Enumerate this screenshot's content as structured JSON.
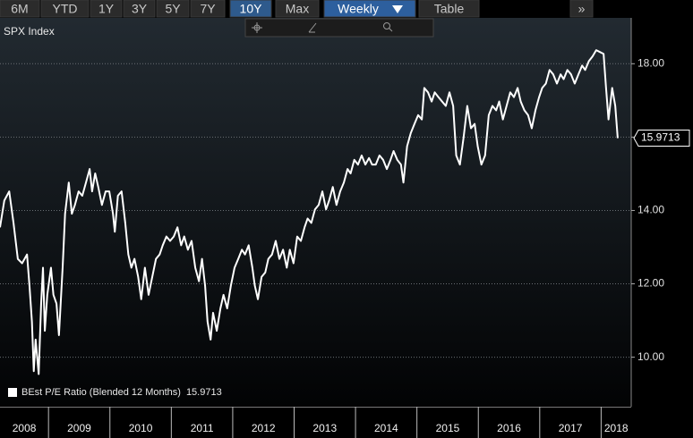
{
  "toolbar": {
    "buttons": [
      "6M",
      "YTD",
      "1Y",
      "3Y",
      "5Y",
      "7Y",
      "10Y",
      "Max",
      "Weekly",
      "Table",
      "»"
    ],
    "tools": [
      "Track",
      "Annotate",
      "Zoom"
    ]
  },
  "chart_data": {
    "type": "line",
    "title": "SPX Index",
    "x": [
      2008.21,
      2008.28,
      2008.36,
      2008.43,
      2008.5,
      2008.57,
      2008.65,
      2008.69,
      2008.73,
      2008.76,
      2008.79,
      2008.84,
      2008.88,
      2008.91,
      2008.94,
      2008.98,
      2009.04,
      2009.08,
      2009.13,
      2009.17,
      2009.23,
      2009.27,
      2009.33,
      2009.38,
      2009.43,
      2009.49,
      2009.55,
      2009.61,
      2009.67,
      2009.71,
      2009.76,
      2009.81,
      2009.87,
      2009.93,
      2009.99,
      2010.05,
      2010.08,
      2010.13,
      2010.19,
      2010.25,
      2010.3,
      2010.35,
      2010.4,
      2010.46,
      2010.51,
      2010.57,
      2010.63,
      2010.69,
      2010.75,
      2010.81,
      2010.86,
      2010.92,
      2010.98,
      2011.04,
      2011.1,
      2011.16,
      2011.21,
      2011.27,
      2011.33,
      2011.39,
      2011.45,
      2011.5,
      2011.55,
      2011.59,
      2011.64,
      2011.68,
      2011.74,
      2011.8,
      2011.85,
      2011.91,
      2011.97,
      2012.03,
      2012.09,
      2012.15,
      2012.2,
      2012.26,
      2012.32,
      2012.36,
      2012.41,
      2012.47,
      2012.53,
      2012.58,
      2012.64,
      2012.7,
      2012.76,
      2012.82,
      2012.88,
      2012.93,
      2012.99,
      2013.05,
      2013.11,
      2013.17,
      2013.22,
      2013.28,
      2013.34,
      2013.4,
      2013.46,
      2013.52,
      2013.57,
      2013.63,
      2013.69,
      2013.75,
      2013.81,
      2013.87,
      2013.92,
      2013.98,
      2014.04,
      2014.1,
      2014.16,
      2014.22,
      2014.27,
      2014.33,
      2014.39,
      2014.45,
      2014.51,
      2014.57,
      2014.62,
      2014.68,
      2014.74,
      2014.78,
      2014.84,
      2014.9,
      2014.96,
      2015.02,
      2015.08,
      2015.12,
      2015.18,
      2015.24,
      2015.29,
      2015.35,
      2015.41,
      2015.47,
      2015.53,
      2015.59,
      2015.64,
      2015.7,
      2015.76,
      2015.82,
      2015.88,
      2015.94,
      2015.99,
      2016.05,
      2016.11,
      2016.17,
      2016.23,
      2016.29,
      2016.34,
      2016.4,
      2016.46,
      2016.52,
      2016.58,
      2016.64,
      2016.69,
      2016.75,
      2016.81,
      2016.87,
      2016.93,
      2016.99,
      2017.04,
      2017.1,
      2017.16,
      2017.22,
      2017.28,
      2017.34,
      2017.39,
      2017.45,
      2017.51,
      2017.57,
      2017.63,
      2017.69,
      2017.74,
      2017.8,
      2017.86,
      2017.92,
      2017.98,
      2018.04,
      2018.08,
      2018.12,
      2018.18,
      2018.23,
      2018.27
    ],
    "series": [
      {
        "name": "BEst P/E Ratio (Blended 12 Months)",
        "color": "#ffffff",
        "values": [
          13.54,
          14.27,
          14.52,
          13.66,
          12.68,
          12.56,
          12.8,
          11.95,
          10.97,
          9.62,
          10.48,
          9.54,
          11.46,
          12.44,
          10.72,
          11.7,
          12.44,
          11.7,
          11.46,
          10.6,
          12.44,
          13.91,
          14.76,
          13.91,
          14.15,
          14.52,
          14.4,
          14.76,
          15.13,
          14.52,
          15.01,
          14.64,
          14.15,
          14.52,
          14.52,
          13.91,
          13.42,
          14.4,
          14.52,
          13.66,
          12.8,
          12.44,
          12.68,
          12.19,
          11.58,
          12.44,
          11.7,
          12.19,
          12.68,
          12.8,
          13.05,
          13.29,
          13.17,
          13.29,
          13.54,
          13.05,
          13.29,
          12.93,
          13.17,
          12.44,
          12.07,
          12.68,
          11.95,
          10.97,
          10.48,
          11.21,
          10.72,
          11.33,
          11.7,
          11.33,
          11.95,
          12.44,
          12.68,
          12.93,
          12.8,
          13.05,
          12.44,
          11.95,
          11.58,
          12.19,
          12.31,
          12.68,
          12.8,
          13.17,
          12.68,
          12.93,
          12.44,
          12.93,
          12.56,
          13.29,
          13.17,
          13.54,
          13.78,
          13.66,
          14.03,
          14.15,
          14.52,
          14.03,
          14.27,
          14.64,
          14.15,
          14.52,
          14.76,
          15.13,
          15.01,
          15.38,
          15.25,
          15.5,
          15.25,
          15.43,
          15.25,
          15.25,
          15.5,
          15.38,
          15.13,
          15.38,
          15.62,
          15.38,
          15.25,
          14.76,
          15.75,
          16.11,
          16.36,
          16.6,
          16.48,
          17.34,
          17.22,
          16.97,
          17.22,
          17.09,
          16.97,
          16.85,
          17.22,
          16.85,
          15.5,
          15.25,
          15.99,
          16.85,
          16.24,
          16.36,
          15.75,
          15.25,
          15.5,
          16.6,
          16.85,
          16.73,
          16.97,
          16.48,
          16.85,
          17.22,
          17.09,
          17.34,
          16.97,
          16.73,
          16.6,
          16.24,
          16.73,
          17.09,
          17.34,
          17.46,
          17.83,
          17.71,
          17.46,
          17.71,
          17.58,
          17.83,
          17.71,
          17.46,
          17.71,
          17.95,
          17.83,
          18.07,
          18.2,
          18.37,
          18.32,
          18.27,
          17.34,
          16.48,
          17.34,
          16.85,
          15.9713
        ]
      }
    ],
    "xlim": [
      2008.21,
      2018.49
    ],
    "xticks": [
      2008,
      2009,
      2010,
      2011,
      2012,
      2013,
      2014,
      2015,
      2016,
      2017,
      2018
    ],
    "ylim": [
      8.65,
      19.25
    ],
    "yticks": [
      {
        "value": 10,
        "label": "10.00"
      },
      {
        "value": 12,
        "label": "12.00"
      },
      {
        "value": 14,
        "label": "14.00"
      },
      {
        "value": 16,
        "label": "16.00"
      },
      {
        "value": 18,
        "label": "18.00"
      }
    ],
    "grid": true,
    "legend": "lower left"
  }
}
